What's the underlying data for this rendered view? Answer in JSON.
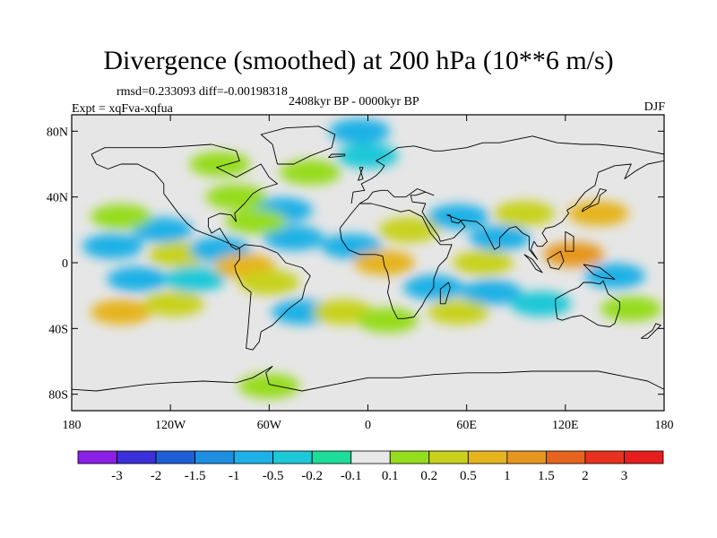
{
  "title": "Divergence (smoothed) at 200 hPa (10**6 m/s)",
  "stats": {
    "rmsd_label": "rmsd=",
    "rmsd": "0.233093",
    "diff_label": "diff=",
    "diff": "-0.00198318"
  },
  "experiment": "Expt = xqFva-xqfua",
  "period": "2408kyr BP - 0000kyr BP",
  "season": "DJF",
  "map": {
    "projection": "cylindrical-equidistant",
    "land_color": "#e6e6e6",
    "lon_range": [
      -180,
      180
    ],
    "lat_range": [
      -90,
      90
    ],
    "lat_ticks": [
      "80N",
      "40N",
      "0",
      "40S",
      "80S"
    ],
    "lon_ticks": [
      "180",
      "120W",
      "60W",
      "0",
      "60E",
      "120E",
      "180"
    ]
  },
  "colorbar": {
    "levels": [
      "-3",
      "-2",
      "-1.5",
      "-1",
      "-0.5",
      "-0.2",
      "-0.1",
      "0.1",
      "0.2",
      "0.5",
      "1",
      "1.5",
      "2",
      "3"
    ],
    "colors": [
      "#8a1fe6",
      "#3a2fd8",
      "#1e5fd6",
      "#1e8fe0",
      "#1eb0e6",
      "#1ec8d8",
      "#1edc9a",
      "#e8e8e8",
      "#96dc1e",
      "#c8d21e",
      "#e6b41e",
      "#e6961e",
      "#e6641e",
      "#e6321e",
      "#e61e1e"
    ]
  },
  "fields": [
    {
      "lon": -155,
      "lat": 10,
      "v": -0.5
    },
    {
      "lon": -125,
      "lat": 20,
      "v": -0.5
    },
    {
      "lon": -150,
      "lat": 28,
      "v": 0.2
    },
    {
      "lon": -115,
      "lat": 5,
      "v": 0.5
    },
    {
      "lon": -140,
      "lat": -10,
      "v": -0.5
    },
    {
      "lon": -150,
      "lat": -30,
      "v": 1
    },
    {
      "lon": -118,
      "lat": -25,
      "v": 0.5
    },
    {
      "lon": -105,
      "lat": -10,
      "v": -0.2
    },
    {
      "lon": -90,
      "lat": 8,
      "v": -0.5
    },
    {
      "lon": -75,
      "lat": -2,
      "v": 1
    },
    {
      "lon": -60,
      "lat": -12,
      "v": 0.5
    },
    {
      "lon": -45,
      "lat": 15,
      "v": -0.5
    },
    {
      "lon": -52,
      "lat": 32,
      "v": -0.5
    },
    {
      "lon": -80,
      "lat": 40,
      "v": 0.2
    },
    {
      "lon": -68,
      "lat": 25,
      "v": 0.2
    },
    {
      "lon": -40,
      "lat": -30,
      "v": -0.5
    },
    {
      "lon": -15,
      "lat": -30,
      "v": 0.5
    },
    {
      "lon": 12,
      "lat": -35,
      "v": 0.2
    },
    {
      "lon": -10,
      "lat": 10,
      "v": -0.5
    },
    {
      "lon": 10,
      "lat": 0,
      "v": 1
    },
    {
      "lon": 25,
      "lat": 20,
      "v": 0.5
    },
    {
      "lon": 40,
      "lat": -15,
      "v": -0.5
    },
    {
      "lon": 55,
      "lat": 28,
      "v": -0.5
    },
    {
      "lon": 80,
      "lat": 15,
      "v": -0.5
    },
    {
      "lon": 70,
      "lat": 0,
      "v": 0.5
    },
    {
      "lon": 75,
      "lat": -18,
      "v": -0.5
    },
    {
      "lon": 55,
      "lat": -30,
      "v": 0.5
    },
    {
      "lon": 95,
      "lat": 30,
      "v": 0.5
    },
    {
      "lon": 125,
      "lat": 5,
      "v": 1.5
    },
    {
      "lon": 140,
      "lat": 30,
      "v": 1
    },
    {
      "lon": 150,
      "lat": -8,
      "v": -0.5
    },
    {
      "lon": 160,
      "lat": -28,
      "v": 0.2
    },
    {
      "lon": 105,
      "lat": -25,
      "v": -0.2
    },
    {
      "lon": -35,
      "lat": 55,
      "v": 0.2
    },
    {
      "lon": 0,
      "lat": 65,
      "v": -0.2
    },
    {
      "lon": -90,
      "lat": 60,
      "v": 0.2
    },
    {
      "lon": -5,
      "lat": 80,
      "v": -0.5
    },
    {
      "lon": -60,
      "lat": -75,
      "v": 0.2
    }
  ],
  "coastlines": [
    [
      [
        -168,
        66
      ],
      [
        -160,
        70
      ],
      [
        -140,
        70
      ],
      [
        -125,
        70
      ],
      [
        -95,
        72
      ],
      [
        -80,
        68
      ],
      [
        -78,
        62
      ],
      [
        -92,
        58
      ],
      [
        -80,
        52
      ],
      [
        -65,
        60
      ],
      [
        -60,
        52
      ],
      [
        -55,
        48
      ],
      [
        -65,
        45
      ],
      [
        -70,
        42
      ],
      [
        -75,
        36
      ],
      [
        -81,
        30
      ],
      [
        -80,
        25
      ],
      [
        -83,
        29
      ],
      [
        -90,
        30
      ],
      [
        -97,
        27
      ],
      [
        -97,
        22
      ],
      [
        -95,
        18
      ],
      [
        -90,
        21
      ],
      [
        -87,
        16
      ],
      [
        -83,
        10
      ],
      [
        -80,
        8
      ],
      [
        -78,
        9
      ],
      [
        -85,
        12
      ],
      [
        -92,
        15
      ],
      [
        -105,
        20
      ],
      [
        -110,
        24
      ],
      [
        -115,
        30
      ],
      [
        -118,
        34
      ],
      [
        -124,
        42
      ],
      [
        -124,
        48
      ],
      [
        -130,
        55
      ],
      [
        -140,
        60
      ],
      [
        -150,
        60
      ],
      [
        -158,
        57
      ],
      [
        -165,
        60
      ],
      [
        -168,
        66
      ]
    ],
    [
      [
        -78,
        9
      ],
      [
        -75,
        11
      ],
      [
        -65,
        10
      ],
      [
        -55,
        6
      ],
      [
        -50,
        0
      ],
      [
        -40,
        -3
      ],
      [
        -35,
        -8
      ],
      [
        -38,
        -14
      ],
      [
        -40,
        -22
      ],
      [
        -48,
        -28
      ],
      [
        -55,
        -35
      ],
      [
        -58,
        -38
      ],
      [
        -65,
        -42
      ],
      [
        -66,
        -48
      ],
      [
        -70,
        -53
      ],
      [
        -74,
        -52
      ],
      [
        -73,
        -42
      ],
      [
        -72,
        -30
      ],
      [
        -71,
        -18
      ],
      [
        -76,
        -14
      ],
      [
        -80,
        -6
      ],
      [
        -81,
        -2
      ],
      [
        -78,
        2
      ],
      [
        -78,
        9
      ]
    ],
    [
      [
        -55,
        60
      ],
      [
        -45,
        60
      ],
      [
        -35,
        65
      ],
      [
        -22,
        70
      ],
      [
        -20,
        78
      ],
      [
        -30,
        83
      ],
      [
        -50,
        82
      ],
      [
        -65,
        78
      ],
      [
        -58,
        72
      ],
      [
        -55,
        60
      ]
    ],
    [
      [
        -17,
        21
      ],
      [
        -16,
        14
      ],
      [
        -12,
        8
      ],
      [
        -5,
        5
      ],
      [
        5,
        5
      ],
      [
        9,
        4
      ],
      [
        10,
        -2
      ],
      [
        12,
        -6
      ],
      [
        13,
        -12
      ],
      [
        12,
        -18
      ],
      [
        15,
        -28
      ],
      [
        18,
        -34
      ],
      [
        22,
        -34
      ],
      [
        28,
        -33
      ],
      [
        33,
        -26
      ],
      [
        35,
        -22
      ],
      [
        40,
        -15
      ],
      [
        40,
        -10
      ],
      [
        43,
        -2
      ],
      [
        48,
        3
      ],
      [
        51,
        11
      ],
      [
        44,
        11
      ],
      [
        38,
        18
      ],
      [
        33,
        28
      ],
      [
        25,
        32
      ],
      [
        20,
        31
      ],
      [
        10,
        34
      ],
      [
        2,
        36
      ],
      [
        -5,
        36
      ],
      [
        -10,
        30
      ],
      [
        -17,
        21
      ]
    ],
    [
      [
        -10,
        36
      ],
      [
        -9,
        43
      ],
      [
        -2,
        44
      ],
      [
        -4,
        48
      ],
      [
        2,
        51
      ],
      [
        5,
        53
      ],
      [
        8,
        56
      ],
      [
        10,
        59
      ],
      [
        5,
        62
      ],
      [
        12,
        66
      ],
      [
        18,
        70
      ],
      [
        28,
        71
      ],
      [
        40,
        68
      ],
      [
        45,
        68
      ],
      [
        60,
        70
      ],
      [
        70,
        73
      ],
      [
        80,
        73
      ],
      [
        100,
        77
      ],
      [
        115,
        73
      ],
      [
        130,
        72
      ],
      [
        140,
        72
      ],
      [
        160,
        70
      ],
      [
        170,
        68
      ],
      [
        180,
        66
      ]
    ],
    [
      [
        180,
        62
      ],
      [
        170,
        60
      ],
      [
        163,
        56
      ],
      [
        156,
        51
      ],
      [
        160,
        60
      ],
      [
        150,
        59
      ],
      [
        140,
        55
      ],
      [
        138,
        47
      ],
      [
        132,
        43
      ],
      [
        128,
        38
      ],
      [
        126,
        35
      ],
      [
        121,
        32
      ],
      [
        122,
        30
      ],
      [
        118,
        25
      ],
      [
        113,
        22
      ],
      [
        108,
        21
      ],
      [
        106,
        18
      ],
      [
        109,
        13
      ],
      [
        106,
        10
      ],
      [
        103,
        10
      ],
      [
        101,
        13
      ],
      [
        99,
        8
      ],
      [
        103,
        2
      ],
      [
        98,
        8
      ],
      [
        98,
        16
      ],
      [
        94,
        18
      ],
      [
        90,
        22
      ],
      [
        86,
        21
      ],
      [
        80,
        15
      ],
      [
        80,
        10
      ],
      [
        77,
        8
      ],
      [
        73,
        16
      ],
      [
        70,
        22
      ],
      [
        66,
        25
      ],
      [
        57,
        26
      ],
      [
        55,
        24
      ],
      [
        51,
        25
      ],
      [
        50,
        29
      ],
      [
        48,
        29
      ],
      [
        56,
        26
      ],
      [
        59,
        22
      ],
      [
        52,
        15
      ],
      [
        44,
        13
      ],
      [
        43,
        16
      ],
      [
        36,
        26
      ],
      [
        33,
        31
      ],
      [
        35,
        36
      ],
      [
        27,
        37
      ],
      [
        26,
        41
      ],
      [
        29,
        41
      ],
      [
        35,
        43
      ],
      [
        40,
        41
      ],
      [
        30,
        45
      ],
      [
        23,
        40
      ],
      [
        20,
        40
      ],
      [
        16,
        40
      ],
      [
        12,
        44
      ],
      [
        8,
        44
      ],
      [
        3,
        43
      ],
      [
        0,
        39
      ],
      [
        -5,
        36
      ]
    ],
    [
      [
        114,
        -22
      ],
      [
        114,
        -26
      ],
      [
        115,
        -34
      ],
      [
        118,
        -35
      ],
      [
        124,
        -33
      ],
      [
        130,
        -32
      ],
      [
        135,
        -35
      ],
      [
        140,
        -38
      ],
      [
        147,
        -39
      ],
      [
        150,
        -37
      ],
      [
        153,
        -28
      ],
      [
        153,
        -24
      ],
      [
        146,
        -19
      ],
      [
        143,
        -11
      ],
      [
        141,
        -13
      ],
      [
        136,
        -12
      ],
      [
        131,
        -12
      ],
      [
        128,
        -15
      ],
      [
        123,
        -17
      ],
      [
        114,
        -22
      ]
    ],
    [
      [
        95,
        5
      ],
      [
        100,
        2
      ],
      [
        106,
        -6
      ],
      [
        102,
        -4
      ],
      [
        98,
        2
      ],
      [
        95,
        5
      ]
    ],
    [
      [
        109,
        2
      ],
      [
        117,
        7
      ],
      [
        119,
        1
      ],
      [
        116,
        -4
      ],
      [
        111,
        -3
      ],
      [
        109,
        2
      ]
    ],
    [
      [
        131,
        -1
      ],
      [
        141,
        -3
      ],
      [
        150,
        -10
      ],
      [
        142,
        -9
      ],
      [
        137,
        -7
      ],
      [
        131,
        -1
      ]
    ],
    [
      [
        130,
        31
      ],
      [
        135,
        34
      ],
      [
        140,
        36
      ],
      [
        141,
        41
      ],
      [
        145,
        44
      ],
      [
        141,
        45
      ],
      [
        139,
        40
      ],
      [
        135,
        35
      ],
      [
        131,
        33
      ],
      [
        130,
        31
      ]
    ],
    [
      [
        -6,
        50
      ],
      [
        -3,
        58
      ],
      [
        -5,
        58
      ],
      [
        -3,
        51
      ],
      [
        -6,
        50
      ]
    ],
    [
      [
        -24,
        64
      ],
      [
        -14,
        65
      ],
      [
        -14,
        66
      ],
      [
        -22,
        66
      ],
      [
        -24,
        64
      ]
    ],
    [
      [
        44,
        -25
      ],
      [
        47,
        -25
      ],
      [
        50,
        -15
      ],
      [
        49,
        -12
      ],
      [
        44,
        -16
      ],
      [
        44,
        -25
      ]
    ],
    [
      [
        166,
        -46
      ],
      [
        173,
        -41
      ],
      [
        175,
        -37
      ],
      [
        178,
        -38
      ],
      [
        174,
        -42
      ],
      [
        170,
        -46
      ],
      [
        166,
        -46
      ]
    ],
    [
      [
        -180,
        -77
      ],
      [
        -165,
        -78
      ],
      [
        -150,
        -76
      ],
      [
        -135,
        -74
      ],
      [
        -120,
        -73
      ],
      [
        -100,
        -72
      ],
      [
        -80,
        -73
      ],
      [
        -70,
        -70
      ],
      [
        -58,
        -63
      ],
      [
        -62,
        -67
      ],
      [
        -60,
        -74
      ],
      [
        -40,
        -78
      ],
      [
        -20,
        -74
      ],
      [
        0,
        -70
      ],
      [
        20,
        -70
      ],
      [
        40,
        -68
      ],
      [
        60,
        -67
      ],
      [
        80,
        -67
      ],
      [
        100,
        -66
      ],
      [
        120,
        -66
      ],
      [
        140,
        -66
      ],
      [
        160,
        -70
      ],
      [
        170,
        -72
      ],
      [
        180,
        -77
      ]
    ],
    [
      [
        120,
        19
      ],
      [
        125,
        16
      ],
      [
        125,
        7
      ],
      [
        120,
        7
      ],
      [
        120,
        19
      ]
    ]
  ]
}
